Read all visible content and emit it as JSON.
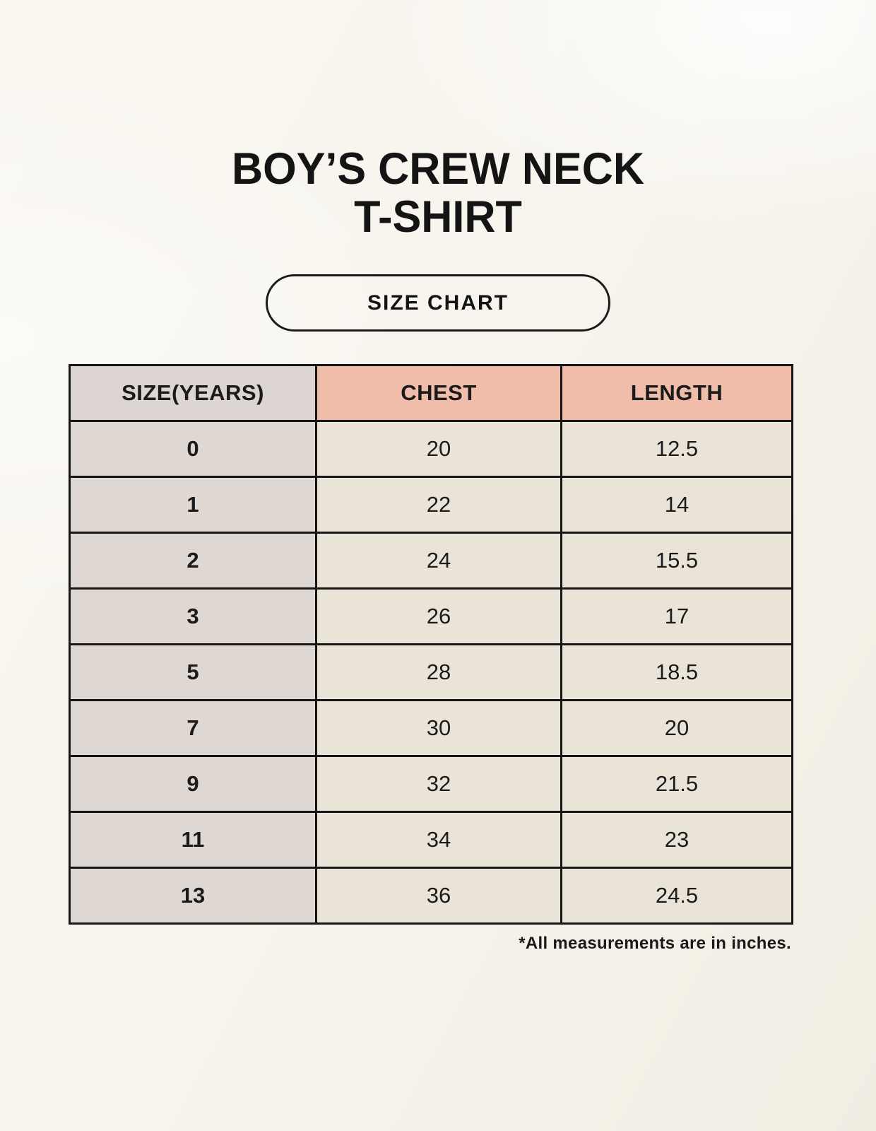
{
  "page": {
    "title_line1": "BOY’S CREW NECK",
    "title_line2": "T-SHIRT",
    "badge_label": "SIZE CHART",
    "footnote": "*All measurements are in inches."
  },
  "colors": {
    "background": "#f7f4ed",
    "header_size_bg": "#dcd5d1",
    "header_measure_bg": "#f0bdab",
    "row_size_bg": "#ded7d2",
    "row_measure_bg": "#eae3d8",
    "border": "#161616",
    "text": "#1b1b1b"
  },
  "chart_data": {
    "type": "table",
    "title": "BOY’S CREW NECK T-SHIRT — SIZE CHART",
    "columns": [
      "SIZE(YEARS)",
      "CHEST",
      "LENGTH"
    ],
    "rows": [
      [
        "0",
        "20",
        "12.5"
      ],
      [
        "1",
        "22",
        "14"
      ],
      [
        "2",
        "24",
        "15.5"
      ],
      [
        "3",
        "26",
        "17"
      ],
      [
        "5",
        "28",
        "18.5"
      ],
      [
        "7",
        "30",
        "20"
      ],
      [
        "9",
        "32",
        "21.5"
      ],
      [
        "11",
        "34",
        "23"
      ],
      [
        "13",
        "36",
        "24.5"
      ]
    ],
    "units": "inches",
    "footnote": "*All measurements are in inches."
  }
}
